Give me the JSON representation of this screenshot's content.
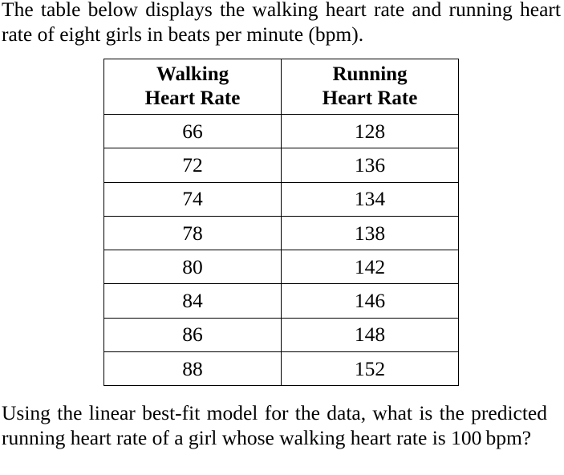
{
  "question": {
    "intro_text": "The table below displays the walking heart rate and running heart rate of eight girls in beats per minute (bpm).",
    "outro_text": "Using the linear best-fit model for the data, what is the predicted running heart rate of a girl whose walking heart rate is 100 bpm?"
  },
  "table": {
    "headers": [
      [
        "Walking",
        "Heart Rate"
      ],
      [
        "Running",
        "Heart Rate"
      ]
    ],
    "rows": [
      [
        "66",
        "128"
      ],
      [
        "72",
        "136"
      ],
      [
        "74",
        "134"
      ],
      [
        "78",
        "138"
      ],
      [
        "80",
        "142"
      ],
      [
        "84",
        "146"
      ],
      [
        "86",
        "148"
      ],
      [
        "88",
        "152"
      ]
    ]
  }
}
